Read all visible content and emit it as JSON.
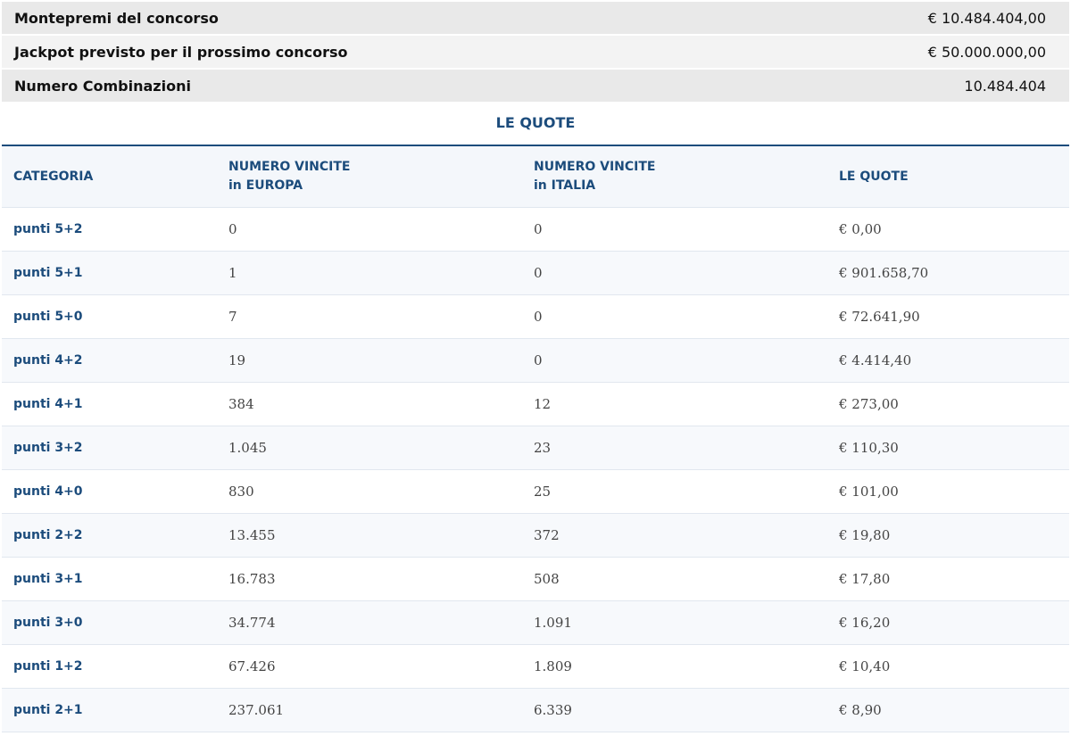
{
  "summary": [
    {
      "label": "Montepremi del concorso",
      "value": "€ 10.484.404,00"
    },
    {
      "label": "Jackpot previsto per il prossimo concorso",
      "value": "€ 50.000.000,00"
    },
    {
      "label": "Numero Combinazioni",
      "value": "10.484.404"
    }
  ],
  "quote": {
    "title": "LE QUOTE",
    "headers": [
      [
        "CATEGORIA"
      ],
      [
        "NUMERO VINCITE",
        "in EUROPA"
      ],
      [
        "NUMERO VINCITE",
        "in ITALIA"
      ],
      [
        "LE QUOTE"
      ]
    ],
    "rows": [
      [
        "punti 5+2",
        "0",
        "0",
        "€ 0,00"
      ],
      [
        "punti 5+1",
        "1",
        "0",
        "€ 901.658,70"
      ],
      [
        "punti 5+0",
        "7",
        "0",
        "€ 72.641,90"
      ],
      [
        "punti 4+2",
        "19",
        "0",
        "€ 4.414,40"
      ],
      [
        "punti 4+1",
        "384",
        "12",
        "€ 273,00"
      ],
      [
        "punti 3+2",
        "1.045",
        "23",
        "€ 110,30"
      ],
      [
        "punti 4+0",
        "830",
        "25",
        "€ 101,00"
      ],
      [
        "punti 2+2",
        "13.455",
        "372",
        "€ 19,80"
      ],
      [
        "punti 3+1",
        "16.783",
        "508",
        "€ 17,80"
      ],
      [
        "punti 3+0",
        "34.774",
        "1.091",
        "€ 16,20"
      ],
      [
        "punti 1+2",
        "67.426",
        "1.809",
        "€ 10,40"
      ],
      [
        "punti 2+1",
        "237.061",
        "6.339",
        "€ 8,90"
      ]
    ]
  }
}
